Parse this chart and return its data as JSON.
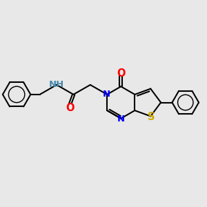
{
  "bg_color": "#e8e8e8",
  "atom_colors": {
    "N": "#0000ff",
    "O": "#ff0000",
    "S": "#ccaa00",
    "C": "#000000",
    "NH": "#4488aa"
  },
  "bond_color": "#000000",
  "bond_width": 1.5,
  "font_size": 9.5,
  "figsize": [
    3.0,
    3.0
  ],
  "dpi": 100
}
